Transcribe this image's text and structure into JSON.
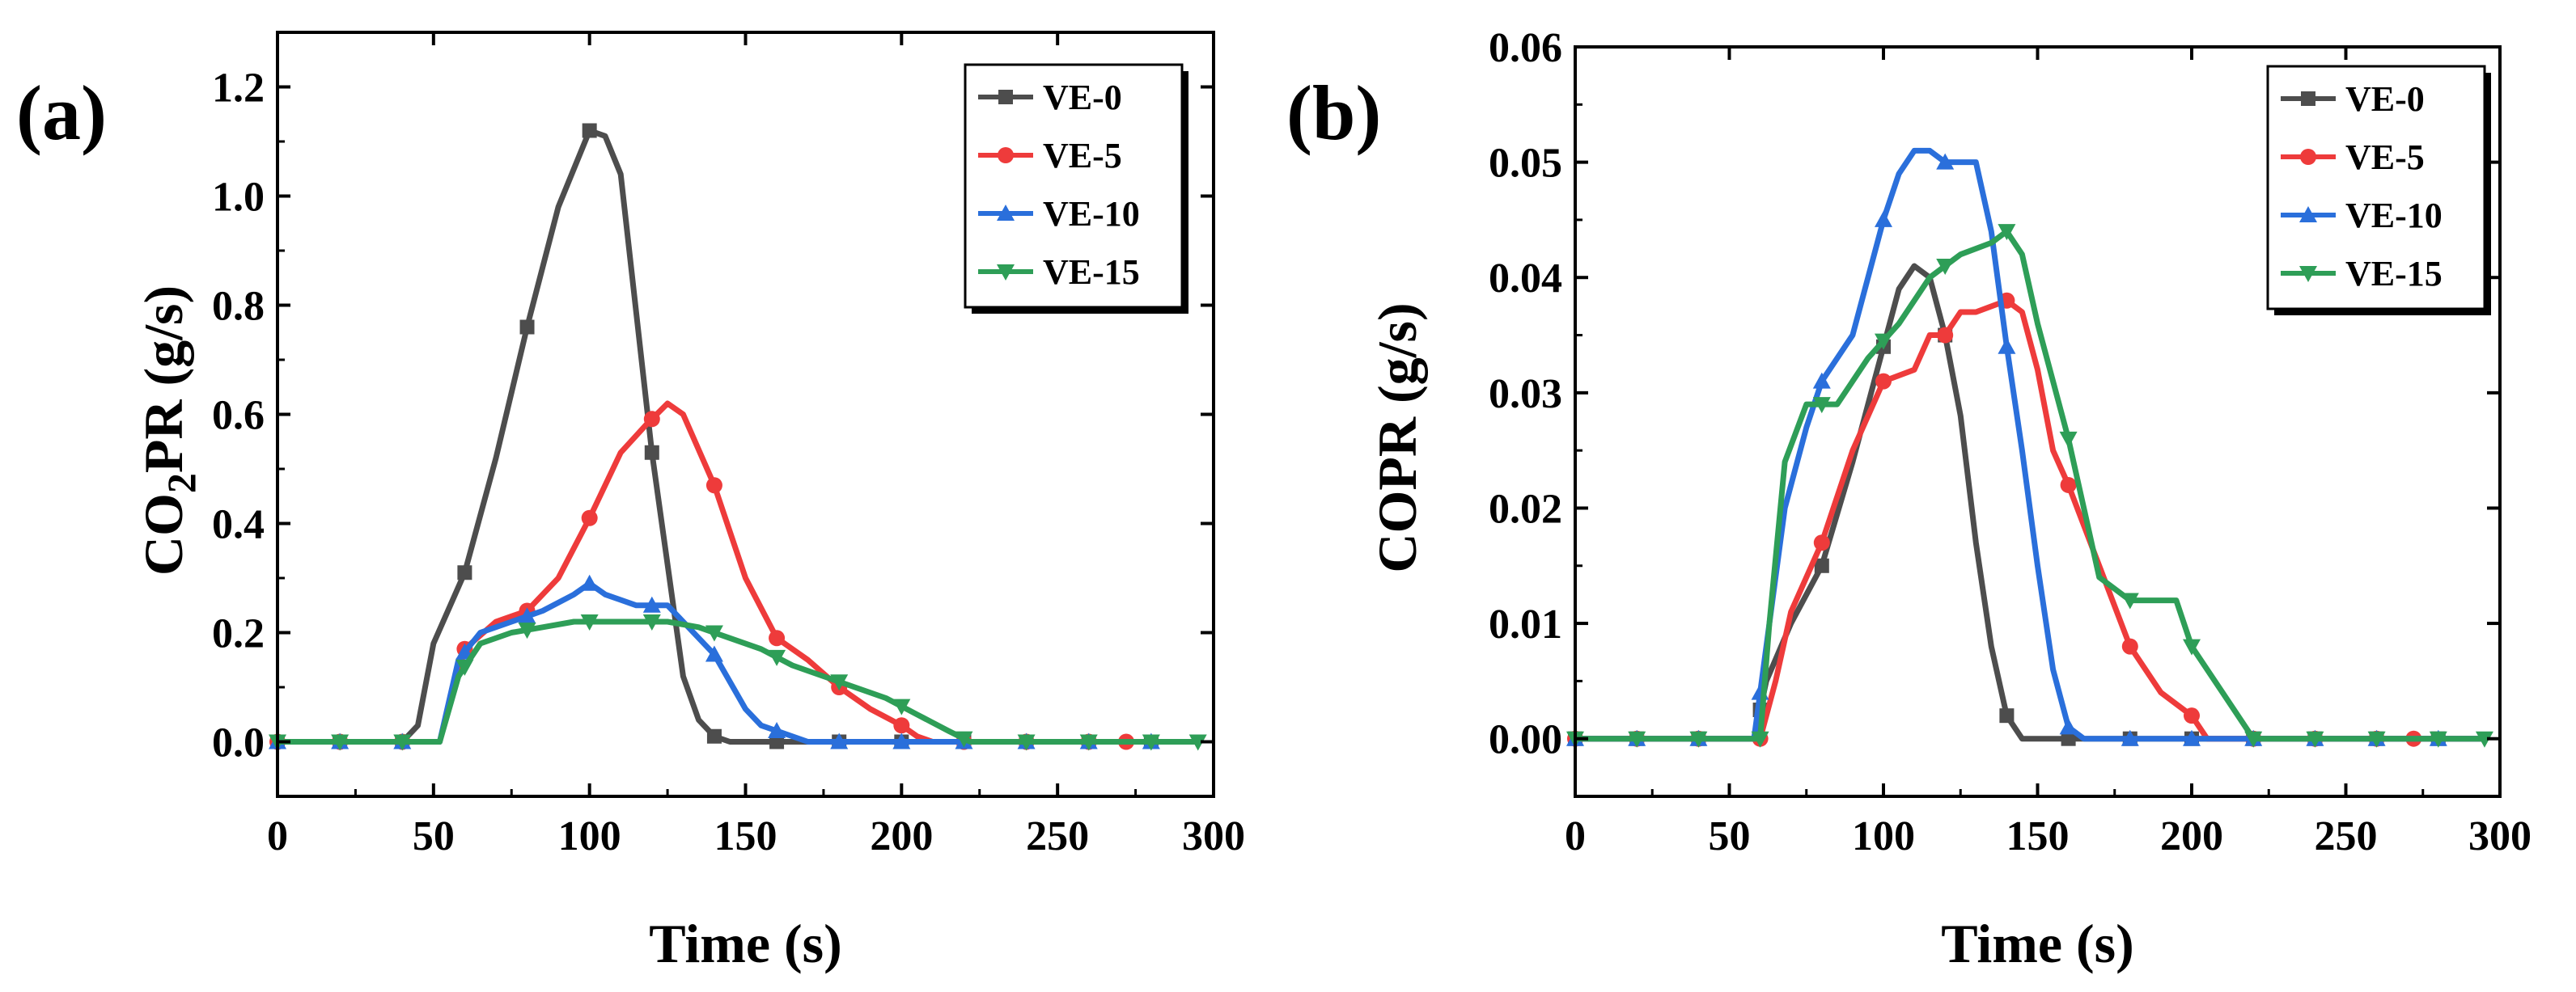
{
  "chart_data": [
    {
      "type": "line",
      "panel_label": "(a)",
      "title": "",
      "xlabel": "Time (s)",
      "ylabel": "CO2PR (g/s)",
      "ylabel_parts": [
        "CO",
        "2",
        "PR (g/s)"
      ],
      "xlim": [
        0,
        300
      ],
      "ylim": [
        -0.1,
        1.3
      ],
      "xticks": [
        0,
        50,
        100,
        150,
        200,
        250,
        300
      ],
      "yticks": [
        0.0,
        0.2,
        0.4,
        0.6,
        0.8,
        1.0,
        1.2
      ],
      "xtick_labels": [
        "0",
        "50",
        "100",
        "150",
        "200",
        "250",
        "300"
      ],
      "ytick_labels": [
        "0.0",
        "0.2",
        "0.4",
        "0.6",
        "0.8",
        "1.0",
        "1.2"
      ],
      "grid": false,
      "legend_position": "top-right",
      "series": [
        {
          "name": "VE-0",
          "color": "#4d4d4d",
          "marker": "square",
          "x": [
            0,
            20,
            40,
            45,
            50,
            60,
            70,
            80,
            90,
            100,
            105,
            110,
            120,
            130,
            135,
            140,
            145,
            150,
            160,
            180,
            200,
            220,
            240,
            260,
            280,
            295
          ],
          "y": [
            0,
            0,
            0,
            0.03,
            0.18,
            0.31,
            0.52,
            0.76,
            0.98,
            1.12,
            1.11,
            1.04,
            0.53,
            0.12,
            0.04,
            0.01,
            0.0,
            0.0,
            0.0,
            0.0,
            0.0,
            0.0,
            0.0,
            0.0,
            0.0,
            0.0
          ],
          "markers_x": [
            0,
            20,
            40,
            60,
            80,
            100,
            120,
            140,
            160,
            180,
            200,
            220,
            240,
            260,
            280
          ]
        },
        {
          "name": "VE-5",
          "color": "#ee3b3b",
          "marker": "circle",
          "x": [
            0,
            20,
            40,
            52,
            60,
            70,
            80,
            90,
            100,
            110,
            118,
            125,
            130,
            140,
            150,
            160,
            170,
            180,
            190,
            200,
            205,
            210,
            220,
            240,
            260,
            280,
            295
          ],
          "y": [
            0,
            0,
            0,
            0.0,
            0.17,
            0.22,
            0.24,
            0.3,
            0.41,
            0.53,
            0.58,
            0.62,
            0.6,
            0.47,
            0.3,
            0.19,
            0.15,
            0.1,
            0.06,
            0.03,
            0.01,
            0.0,
            0.0,
            0.0,
            0.0,
            0.0,
            0.0
          ],
          "markers_x": [
            0,
            20,
            40,
            60,
            80,
            100,
            120,
            140,
            160,
            180,
            200,
            220,
            240,
            260,
            272
          ]
        },
        {
          "name": "VE-10",
          "color": "#2a6fdb",
          "marker": "triangle-up",
          "x": [
            0,
            20,
            40,
            52,
            58,
            65,
            75,
            85,
            95,
            100,
            105,
            115,
            125,
            130,
            140,
            150,
            155,
            160,
            170,
            180,
            200,
            220,
            240,
            260,
            280,
            295
          ],
          "y": [
            0,
            0,
            0,
            0.0,
            0.15,
            0.2,
            0.22,
            0.24,
            0.27,
            0.29,
            0.27,
            0.25,
            0.25,
            0.22,
            0.16,
            0.06,
            0.03,
            0.02,
            0.0,
            0.0,
            0.0,
            0.0,
            0.0,
            0.0,
            0.0,
            0.0
          ],
          "markers_x": [
            0,
            20,
            40,
            60,
            80,
            100,
            120,
            140,
            160,
            180,
            200,
            220,
            240,
            260,
            280
          ]
        },
        {
          "name": "VE-15",
          "color": "#2e9e57",
          "marker": "triangle-down",
          "x": [
            0,
            20,
            40,
            52,
            58,
            65,
            75,
            85,
            95,
            105,
            115,
            125,
            135,
            145,
            155,
            165,
            175,
            185,
            195,
            205,
            215,
            222,
            230,
            240,
            260,
            280,
            295
          ],
          "y": [
            0,
            0,
            0,
            0.0,
            0.12,
            0.18,
            0.2,
            0.21,
            0.22,
            0.22,
            0.22,
            0.22,
            0.21,
            0.19,
            0.17,
            0.14,
            0.12,
            0.1,
            0.08,
            0.05,
            0.02,
            0.0,
            0.0,
            0.0,
            0.0,
            0.0,
            0.0
          ],
          "markers_x": [
            0,
            20,
            40,
            60,
            80,
            100,
            120,
            140,
            160,
            180,
            200,
            220,
            240,
            260,
            280,
            295
          ]
        }
      ]
    },
    {
      "type": "line",
      "panel_label": "(b)",
      "title": "",
      "xlabel": "Time (s)",
      "ylabel": "COPR (g/s)",
      "ylabel_parts": [
        "COPR (g/s)",
        "",
        ""
      ],
      "xlim": [
        0,
        300
      ],
      "ylim": [
        -0.005,
        0.06
      ],
      "xticks": [
        0,
        50,
        100,
        150,
        200,
        250,
        300
      ],
      "yticks": [
        0.0,
        0.01,
        0.02,
        0.03,
        0.04,
        0.05,
        0.06
      ],
      "xtick_labels": [
        "0",
        "50",
        "100",
        "150",
        "200",
        "250",
        "300"
      ],
      "ytick_labels": [
        "0.00",
        "0.01",
        "0.02",
        "0.03",
        "0.04",
        "0.05",
        "0.06"
      ],
      "grid": false,
      "legend_position": "top-right",
      "series": [
        {
          "name": "VE-0",
          "color": "#4d4d4d",
          "marker": "square",
          "x": [
            0,
            20,
            40,
            58,
            62,
            70,
            80,
            90,
            100,
            105,
            110,
            115,
            120,
            125,
            130,
            135,
            140,
            145,
            150,
            160,
            180,
            200,
            220,
            240,
            260,
            280,
            295
          ],
          "y": [
            0,
            0,
            0,
            0.0,
            0.005,
            0.01,
            0.015,
            0.024,
            0.034,
            0.039,
            0.041,
            0.04,
            0.035,
            0.028,
            0.017,
            0.008,
            0.002,
            0.0,
            0.0,
            0.0,
            0.0,
            0.0,
            0.0,
            0.0,
            0.0,
            0.0,
            0.0
          ],
          "markers_x": [
            0,
            20,
            40,
            60,
            80,
            100,
            120,
            140,
            160,
            180,
            200,
            220,
            240,
            260,
            280
          ]
        },
        {
          "name": "VE-5",
          "color": "#ee3b3b",
          "marker": "circle",
          "x": [
            0,
            20,
            40,
            60,
            65,
            70,
            80,
            90,
            100,
            110,
            115,
            120,
            125,
            130,
            140,
            145,
            150,
            155,
            160,
            170,
            180,
            190,
            200,
            205,
            220,
            240,
            260,
            280,
            295
          ],
          "y": [
            0,
            0,
            0,
            0.0,
            0.005,
            0.011,
            0.017,
            0.025,
            0.031,
            0.032,
            0.035,
            0.035,
            0.037,
            0.037,
            0.038,
            0.037,
            0.032,
            0.025,
            0.022,
            0.015,
            0.008,
            0.004,
            0.002,
            0.0,
            0.0,
            0.0,
            0.0,
            0.0,
            0.0
          ],
          "markers_x": [
            0,
            20,
            40,
            60,
            80,
            100,
            120,
            140,
            160,
            180,
            200,
            220,
            240,
            260,
            272
          ]
        },
        {
          "name": "VE-10",
          "color": "#2a6fdb",
          "marker": "triangle-up",
          "x": [
            0,
            20,
            40,
            58,
            62,
            68,
            75,
            80,
            90,
            100,
            105,
            110,
            115,
            120,
            125,
            130,
            135,
            140,
            145,
            150,
            155,
            160,
            165,
            180,
            200,
            220,
            240,
            260,
            280,
            295
          ],
          "y": [
            0,
            0,
            0,
            0.0,
            0.008,
            0.02,
            0.027,
            0.031,
            0.035,
            0.045,
            0.049,
            0.051,
            0.051,
            0.05,
            0.05,
            0.05,
            0.044,
            0.034,
            0.025,
            0.015,
            0.006,
            0.001,
            0.0,
            0.0,
            0.0,
            0.0,
            0.0,
            0.0,
            0.0,
            0.0
          ],
          "markers_x": [
            0,
            20,
            40,
            60,
            80,
            100,
            120,
            140,
            160,
            180,
            200,
            220,
            240,
            260,
            280
          ]
        },
        {
          "name": "VE-15",
          "color": "#2e9e57",
          "marker": "triangle-down",
          "x": [
            0,
            20,
            40,
            60,
            63,
            68,
            75,
            85,
            95,
            105,
            115,
            125,
            135,
            140,
            145,
            150,
            155,
            160,
            165,
            170,
            180,
            195,
            200,
            210,
            215,
            220,
            240,
            260,
            280,
            295
          ],
          "y": [
            0,
            0,
            0,
            0.0,
            0.01,
            0.024,
            0.029,
            0.029,
            0.033,
            0.036,
            0.04,
            0.042,
            0.043,
            0.044,
            0.042,
            0.036,
            0.031,
            0.026,
            0.02,
            0.014,
            0.012,
            0.012,
            0.008,
            0.004,
            0.002,
            0.0,
            0.0,
            0.0,
            0.0,
            0.0
          ],
          "markers_x": [
            0,
            20,
            40,
            60,
            80,
            100,
            120,
            140,
            160,
            180,
            200,
            220,
            240,
            260,
            280,
            295
          ]
        }
      ]
    }
  ]
}
